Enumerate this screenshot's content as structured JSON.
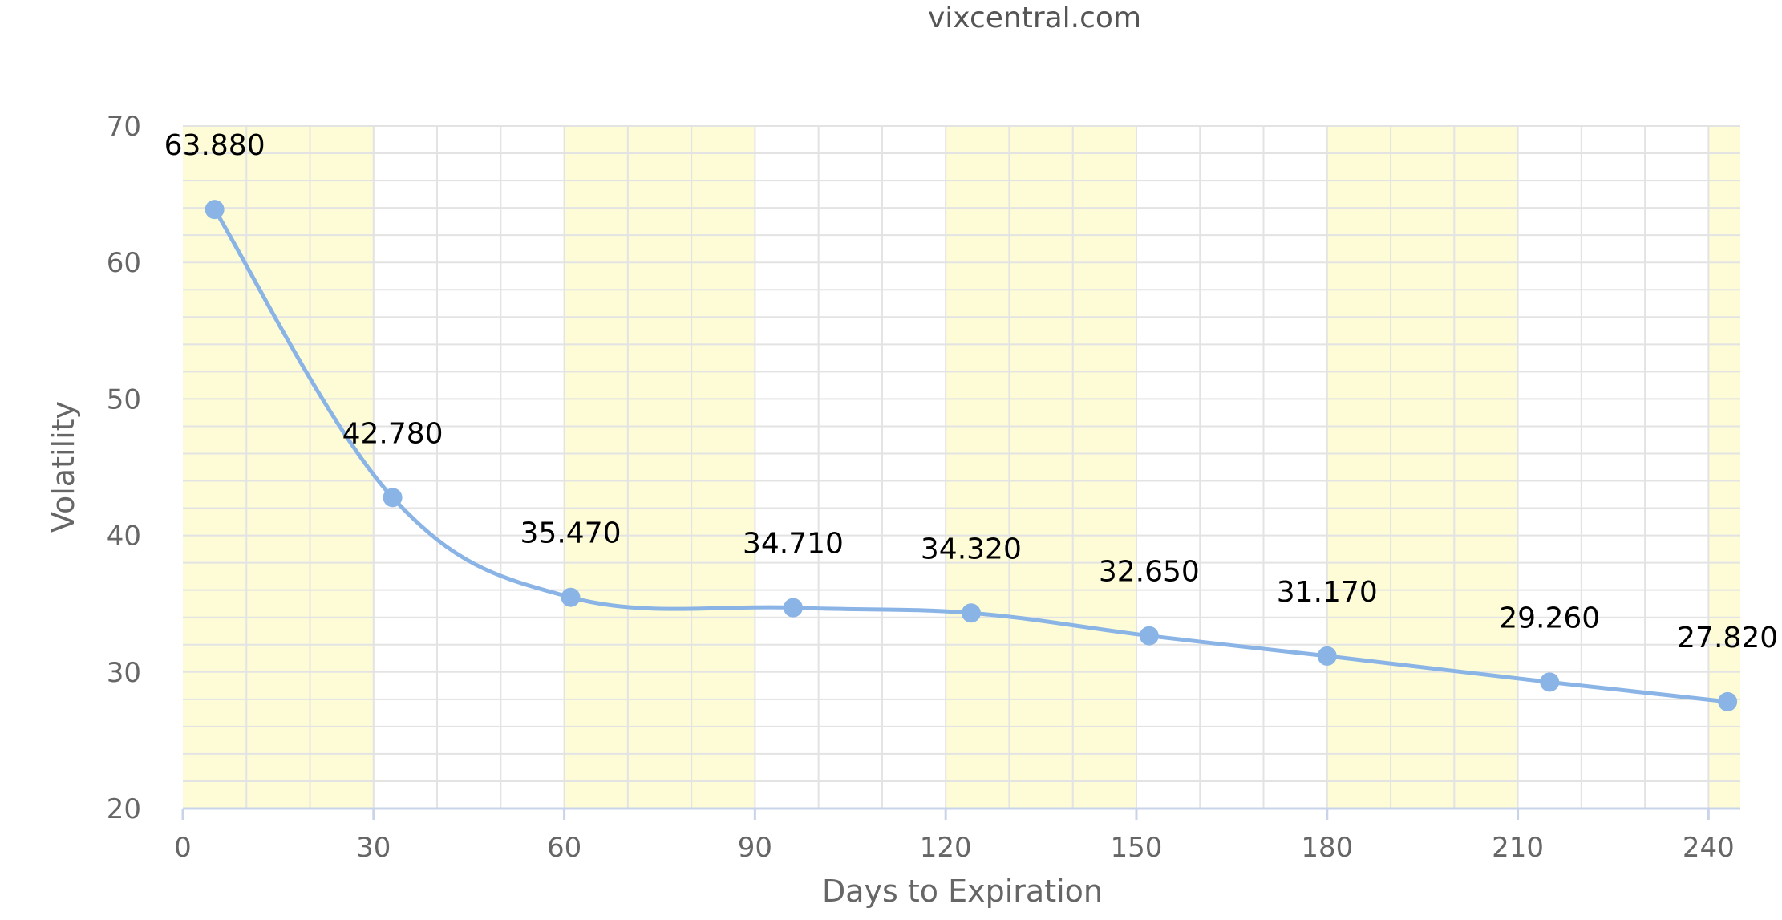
{
  "chart_data": {
    "type": "line",
    "title": "vixcentral.com",
    "xlabel": "Days to Expiration",
    "ylabel": "Volatility",
    "xlim": [
      0,
      245
    ],
    "ylim": [
      20,
      70
    ],
    "x_ticks": [
      "0",
      "30",
      "60",
      "90",
      "120",
      "150",
      "180",
      "210",
      "240"
    ],
    "y_ticks": [
      "20",
      "30",
      "40",
      "50",
      "60",
      "70"
    ],
    "grid": true,
    "bands": [
      [
        0,
        30
      ],
      [
        60,
        90
      ],
      [
        120,
        150
      ],
      [
        180,
        210
      ],
      [
        240,
        245
      ]
    ],
    "series": [
      {
        "x": [
          5,
          33,
          61,
          96,
          124,
          152,
          180,
          215,
          243
        ],
        "y": [
          63.88,
          42.78,
          35.47,
          34.71,
          34.32,
          32.65,
          31.17,
          29.26,
          27.82
        ],
        "labels": [
          "63.880",
          "42.780",
          "35.470",
          "34.710",
          "34.320",
          "32.650",
          "31.170",
          "29.260",
          "27.820"
        ]
      }
    ],
    "colors": {
      "line": "#8ab4e6",
      "band": "#fdfcd6",
      "grid": "#e3e3e3",
      "axis": "#c9d4ea"
    }
  }
}
